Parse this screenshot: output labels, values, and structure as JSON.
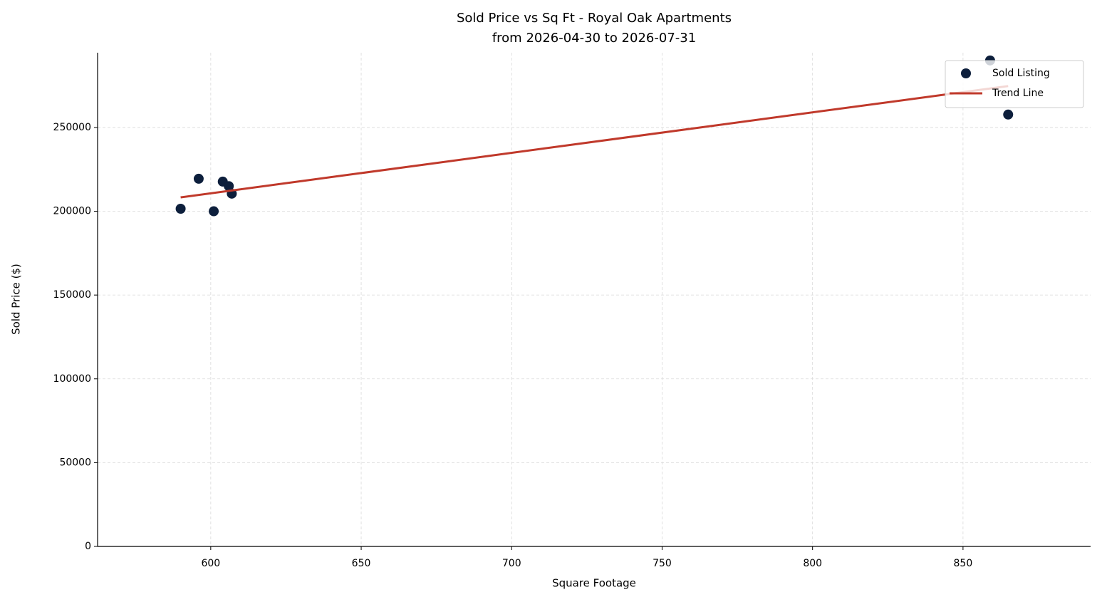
{
  "chart_data": {
    "type": "scatter",
    "title": "Sold Price vs Sq Ft - Royal Oak Apartments",
    "subtitle": "from 2026-04-30 to 2026-07-31",
    "x_label": "Square Footage",
    "y_label": "Sold Price ($)",
    "xlim": [
      562.4,
      892.4
    ],
    "ylim": [
      0,
      294600
    ],
    "xticks": [
      600,
      650,
      700,
      750,
      800,
      850
    ],
    "yticks": [
      0,
      50000,
      100000,
      150000,
      200000,
      250000
    ],
    "grid": true,
    "legend": "upper right",
    "series": [
      {
        "name": "Sold Listing",
        "color": "#0d1f3c",
        "mode": "markers",
        "x": [
          590,
          596,
          601,
          604,
          606,
          607,
          859,
          865
        ],
        "values": [
          201500,
          219400,
          200000,
          217700,
          215000,
          210500,
          290000,
          257700
        ]
      },
      {
        "name": "Trend Line",
        "color": "#c0392b",
        "mode": "line",
        "x": [
          590,
          865
        ],
        "values": [
          208300,
          274700
        ]
      }
    ]
  }
}
